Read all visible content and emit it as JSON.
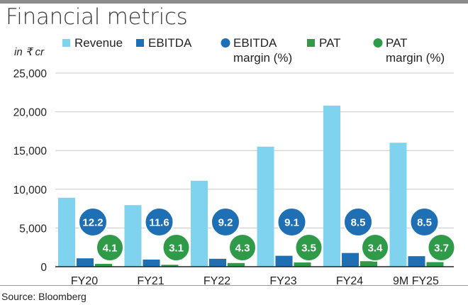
{
  "title": "Financial metrics",
  "unit_label": "in ₹ cr",
  "source": "Source: Bloomberg",
  "colors": {
    "revenue": "#7fd3ee",
    "ebitda": "#1f6fb5",
    "ebitda_margin": "#1f6fb5",
    "pat": "#2f9b49",
    "pat_margin": "#2f9b49",
    "grid": "#c8c8c8",
    "axis": "#222222"
  },
  "legend": [
    {
      "key": "revenue",
      "shape": "square",
      "lines": [
        "Revenue"
      ]
    },
    {
      "key": "ebitda",
      "shape": "square",
      "lines": [
        "EBITDA"
      ]
    },
    {
      "key": "ebitda_margin",
      "shape": "circle",
      "lines": [
        "EBITDA",
        "margin (%)"
      ]
    },
    {
      "key": "pat",
      "shape": "square",
      "lines": [
        "PAT"
      ]
    },
    {
      "key": "pat_margin",
      "shape": "circle",
      "lines": [
        "PAT",
        "margin (%)"
      ]
    }
  ],
  "chart_data": {
    "type": "bar",
    "categories": [
      "FY20",
      "FY21",
      "FY22",
      "FY23",
      "FY24",
      "9M FY25"
    ],
    "ylim": [
      0,
      25000
    ],
    "yticks": [
      0,
      5000,
      10000,
      15000,
      20000,
      25000
    ],
    "ytick_labels": [
      "0",
      "5,000",
      "10,000",
      "15,000",
      "20,000",
      "25,000"
    ],
    "ylabel": "in ₹ cr",
    "grid": true,
    "legend_position": "top",
    "series": [
      {
        "name": "Revenue",
        "key": "revenue",
        "kind": "bar",
        "values": [
          8900,
          7950,
          11100,
          15500,
          20800,
          16000
        ]
      },
      {
        "name": "EBITDA",
        "key": "ebitda",
        "kind": "bar",
        "values": [
          1080,
          920,
          1020,
          1410,
          1770,
          1360
        ]
      },
      {
        "name": "PAT",
        "key": "pat",
        "kind": "bar",
        "values": [
          365,
          245,
          475,
          545,
          710,
          590
        ]
      },
      {
        "name": "EBITDA margin (%)",
        "key": "ebitda_margin",
        "kind": "label",
        "values": [
          12.2,
          11.6,
          9.2,
          9.1,
          8.5,
          8.5
        ],
        "labels": [
          "12.2",
          "11.6",
          "9.2",
          "9.1",
          "8.5",
          "8.5"
        ]
      },
      {
        "name": "PAT margin (%)",
        "key": "pat_margin",
        "kind": "label",
        "values": [
          4.1,
          3.1,
          4.3,
          3.5,
          3.4,
          3.7
        ],
        "labels": [
          "4.1",
          "3.1",
          "4.3",
          "3.5",
          "3.4",
          "3.7"
        ]
      }
    ]
  }
}
